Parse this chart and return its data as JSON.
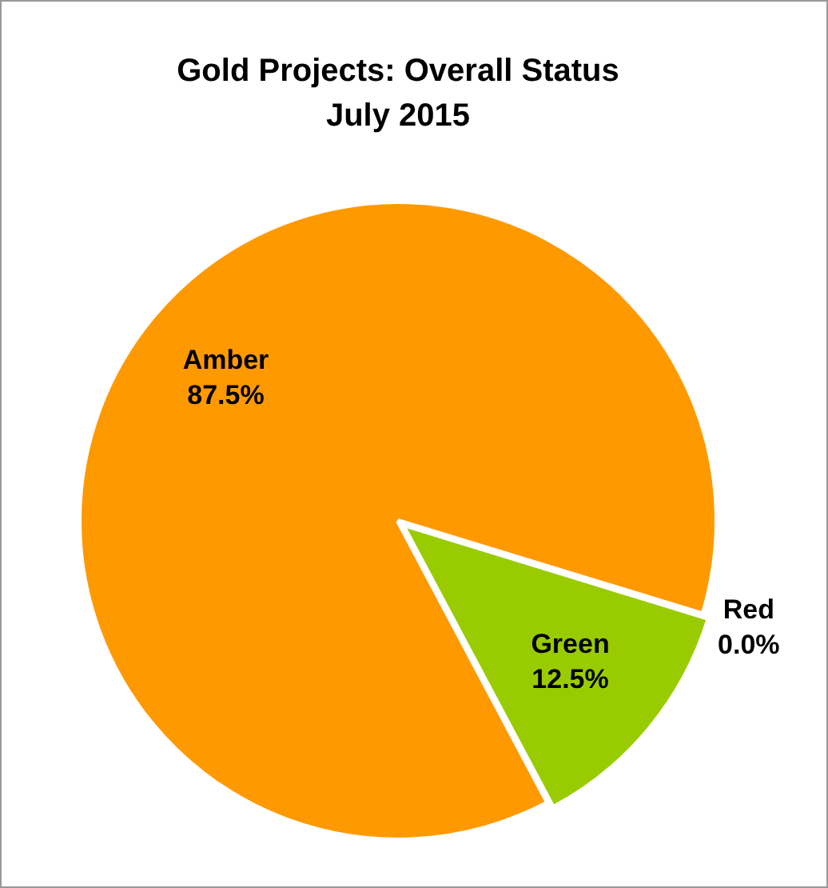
{
  "chart_data": {
    "type": "pie",
    "title": "Gold Projects: Overall Status",
    "subtitle": "July 2015",
    "categories": [
      "Red",
      "Green",
      "Amber"
    ],
    "values": [
      0.0,
      12.5,
      87.5
    ],
    "colors": [
      "#ff0000",
      "#99cc00",
      "#ff9900"
    ],
    "value_labels": [
      "0.0%",
      "12.5%",
      "87.5%"
    ],
    "legend": false
  }
}
